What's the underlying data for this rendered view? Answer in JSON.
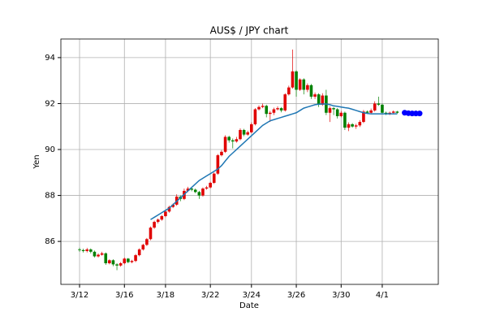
{
  "chart_data": {
    "type": "candlestick",
    "title": "AUS$ / JPY chart",
    "xlabel": "Date",
    "ylabel": "Yen",
    "xlim": [
      -5,
      96
    ],
    "ylim": [
      84.13,
      94.81
    ],
    "xticks": [
      {
        "value": 0,
        "label": "3/12"
      },
      {
        "value": 12,
        "label": "3/16"
      },
      {
        "value": 23,
        "label": "3/18"
      },
      {
        "value": 35,
        "label": "3/22"
      },
      {
        "value": 46,
        "label": "3/24"
      },
      {
        "value": 58,
        "label": "3/26"
      },
      {
        "value": 70,
        "label": "3/30"
      },
      {
        "value": 81,
        "label": "4/1"
      }
    ],
    "yticks": [
      86,
      88,
      90,
      92,
      94
    ],
    "grid": true,
    "up_color": "#e00000",
    "down_color": "#008000",
    "open": [
      85.65,
      85.62,
      85.58,
      85.65,
      85.55,
      85.35,
      85.42,
      85.48,
      85.05,
      85.18,
      85.0,
      84.95,
      85.05,
      85.25,
      85.1,
      85.15,
      85.4,
      85.65,
      85.85,
      86.1,
      86.6,
      86.85,
      86.95,
      87.1,
      87.3,
      87.5,
      87.6,
      87.95,
      87.85,
      88.2,
      88.3,
      88.25,
      88.15,
      88.0,
      88.3,
      88.35,
      88.55,
      88.95,
      89.75,
      89.9,
      90.55,
      90.4,
      90.35,
      90.45,
      90.85,
      90.65,
      90.75,
      91.1,
      91.75,
      91.85,
      91.9,
      91.55,
      91.6,
      91.75,
      91.8,
      91.7,
      92.4,
      92.7,
      93.4,
      92.6,
      93.05,
      92.6,
      92.8,
      92.3,
      92.4,
      91.95,
      92.35,
      91.6,
      91.8,
      91.75,
      91.45,
      91.6,
      90.95,
      91.1,
      91.0,
      91.05,
      91.2,
      91.65,
      91.6,
      91.7,
      92.0,
      91.95,
      91.6,
      91.55,
      91.6,
      91.65
    ],
    "high": [
      85.72,
      85.68,
      85.72,
      85.7,
      85.6,
      85.48,
      85.55,
      85.52,
      85.22,
      85.22,
      85.05,
      85.1,
      85.3,
      85.28,
      85.2,
      85.45,
      85.7,
      85.9,
      86.15,
      86.65,
      86.9,
      87.0,
      87.15,
      87.35,
      87.55,
      87.65,
      88.05,
      88.0,
      88.3,
      88.38,
      88.35,
      88.3,
      88.2,
      88.35,
      88.42,
      88.6,
      89.0,
      89.8,
      89.98,
      90.62,
      90.6,
      90.48,
      90.55,
      90.92,
      90.9,
      90.82,
      91.18,
      91.8,
      91.92,
      92.0,
      91.95,
      91.68,
      91.82,
      91.88,
      91.85,
      92.45,
      92.78,
      94.35,
      93.45,
      93.1,
      93.1,
      92.88,
      92.85,
      92.48,
      92.45,
      92.45,
      92.6,
      91.88,
      91.85,
      91.8,
      91.68,
      91.65,
      91.18,
      91.15,
      91.12,
      91.28,
      91.72,
      91.7,
      91.78,
      92.1,
      92.3,
      92.0,
      91.65,
      91.65,
      91.7,
      91.68
    ],
    "low": [
      85.55,
      85.52,
      85.52,
      85.48,
      85.3,
      85.3,
      85.38,
      84.98,
      85.0,
      84.92,
      84.75,
      84.9,
      85.0,
      85.05,
      85.05,
      85.1,
      85.35,
      85.6,
      85.8,
      86.05,
      86.55,
      86.78,
      86.9,
      87.05,
      87.25,
      87.45,
      87.55,
      87.75,
      87.8,
      88.15,
      88.18,
      88.1,
      87.85,
      87.95,
      88.25,
      88.3,
      88.5,
      88.9,
      89.7,
      89.85,
      90.3,
      90.05,
      90.3,
      90.4,
      90.58,
      90.6,
      90.7,
      91.05,
      91.7,
      91.8,
      91.4,
      91.2,
      91.5,
      91.7,
      91.62,
      91.65,
      92.35,
      92.65,
      92.3,
      92.55,
      92.4,
      92.5,
      92.2,
      92.2,
      91.85,
      91.9,
      91.5,
      91.2,
      91.5,
      91.35,
      91.4,
      90.85,
      90.8,
      90.95,
      90.9,
      90.98,
      91.15,
      91.55,
      91.55,
      91.65,
      91.9,
      91.55,
      91.5,
      91.5,
      91.55,
      91.55
    ],
    "close": [
      85.62,
      85.58,
      85.65,
      85.55,
      85.35,
      85.42,
      85.48,
      85.05,
      85.18,
      85.0,
      84.95,
      85.05,
      85.25,
      85.1,
      85.15,
      85.4,
      85.65,
      85.85,
      86.1,
      86.6,
      86.85,
      86.95,
      87.1,
      87.3,
      87.5,
      87.6,
      87.95,
      87.85,
      88.2,
      88.3,
      88.25,
      88.15,
      88.0,
      88.3,
      88.35,
      88.55,
      88.95,
      89.75,
      89.9,
      90.55,
      90.4,
      90.35,
      90.45,
      90.85,
      90.65,
      90.75,
      91.1,
      91.75,
      91.85,
      91.9,
      91.55,
      91.6,
      91.75,
      91.8,
      91.7,
      92.4,
      92.7,
      93.4,
      92.6,
      93.05,
      92.6,
      92.8,
      92.3,
      92.4,
      91.95,
      92.35,
      91.6,
      91.8,
      91.75,
      91.45,
      91.6,
      90.95,
      91.1,
      91.0,
      91.05,
      91.2,
      91.65,
      91.6,
      91.7,
      92.0,
      91.95,
      91.6,
      91.55,
      91.6,
      91.65,
      91.6
    ],
    "series": [
      {
        "type": "line",
        "color": "#1f77b4",
        "values": [
          null,
          null,
          null,
          null,
          null,
          null,
          null,
          null,
          null,
          null,
          null,
          null,
          null,
          null,
          null,
          null,
          null,
          null,
          null,
          86.95,
          87.05,
          87.15,
          87.25,
          87.35,
          87.45,
          87.6,
          87.75,
          87.9,
          88.05,
          88.2,
          88.35,
          88.5,
          88.65,
          88.75,
          88.85,
          88.95,
          89.05,
          89.15,
          89.3,
          89.5,
          89.7,
          89.85,
          90.0,
          90.15,
          90.3,
          90.45,
          90.6,
          90.75,
          90.9,
          91.05,
          91.15,
          91.25,
          91.3,
          91.35,
          91.4,
          91.45,
          91.5,
          91.55,
          91.6,
          91.7,
          91.8,
          91.85,
          91.9,
          91.95,
          91.97,
          91.98,
          91.98,
          91.95,
          91.9,
          91.88,
          91.85,
          91.82,
          91.8,
          91.75,
          91.7,
          91.65,
          91.6,
          91.57,
          91.55,
          91.55,
          91.55,
          91.55,
          91.55,
          91.55,
          91.55,
          91.55
        ]
      },
      {
        "type": "scatter",
        "color": "#0000ff",
        "x": [
          87,
          88,
          89,
          90,
          91
        ],
        "values": [
          91.6,
          91.58,
          91.57,
          91.57,
          91.57
        ]
      }
    ]
  }
}
